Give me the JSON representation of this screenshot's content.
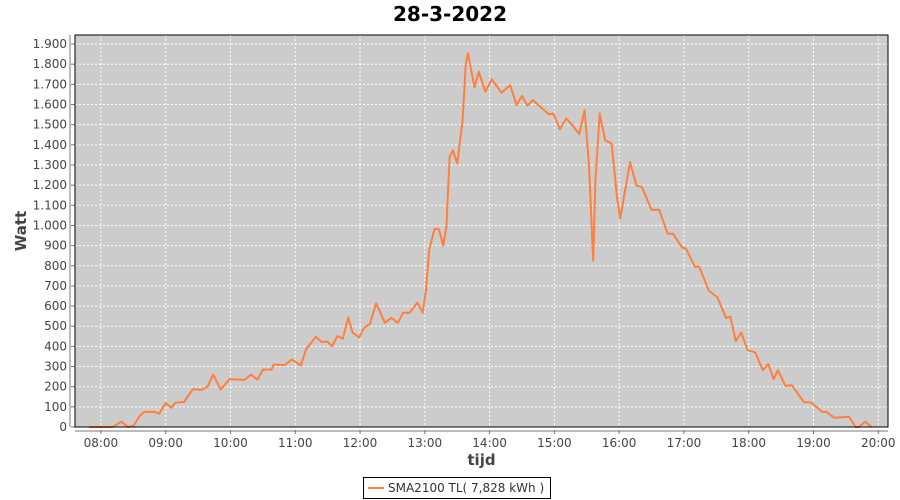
{
  "chart_data": {
    "type": "line",
    "title": "28-3-2022",
    "xlabel": "tijd",
    "ylabel": "Watt",
    "xlim": [
      "07:36",
      "20:09"
    ],
    "ylim": [
      0,
      1945
    ],
    "x_ticks": [
      "08:00",
      "09:00",
      "10:00",
      "11:00",
      "12:00",
      "13:00",
      "14:00",
      "15:00",
      "16:00",
      "17:00",
      "18:00",
      "19:00",
      "20:00"
    ],
    "y_ticks": [
      0,
      100,
      200,
      300,
      400,
      500,
      600,
      700,
      800,
      900,
      1000,
      1100,
      1200,
      1300,
      1400,
      1500,
      1600,
      1700,
      1800,
      1900
    ],
    "y_tick_labels": [
      "0",
      "100",
      "200",
      "300",
      "400",
      "500",
      "600",
      "700",
      "800",
      "900",
      "1.000",
      "1.100",
      "1.200",
      "1.300",
      "1.400",
      "1.500",
      "1.600",
      "1.700",
      "1.800",
      "1.900"
    ],
    "grid": true,
    "legend_position": "bottom",
    "background_color": "#cccccc",
    "series": [
      {
        "name": "SMA2100 TL( 7,828 kWh )",
        "color": "#ff7f3f",
        "points": [
          [
            "07:49",
            0
          ],
          [
            "08:11",
            0
          ],
          [
            "08:19",
            27
          ],
          [
            "08:25",
            0
          ],
          [
            "08:30",
            5
          ],
          [
            "08:36",
            55
          ],
          [
            "08:40",
            75
          ],
          [
            "08:50",
            75
          ],
          [
            "08:54",
            66
          ],
          [
            "09:00",
            118
          ],
          [
            "09:05",
            96
          ],
          [
            "09:09",
            121
          ],
          [
            "09:17",
            124
          ],
          [
            "09:25",
            187
          ],
          [
            "09:33",
            184
          ],
          [
            "09:39",
            202
          ],
          [
            "09:44",
            260
          ],
          [
            "09:51",
            186
          ],
          [
            "09:59",
            237
          ],
          [
            "10:13",
            234
          ],
          [
            "10:19",
            260
          ],
          [
            "10:25",
            235
          ],
          [
            "10:30",
            285
          ],
          [
            "10:38",
            285
          ],
          [
            "10:40",
            310
          ],
          [
            "10:50",
            307
          ],
          [
            "10:57",
            335
          ],
          [
            "11:05",
            305
          ],
          [
            "11:10",
            386
          ],
          [
            "11:19",
            448
          ],
          [
            "11:24",
            423
          ],
          [
            "11:30",
            423
          ],
          [
            "11:34",
            401
          ],
          [
            "11:39",
            451
          ],
          [
            "11:44",
            438
          ],
          [
            "11:49",
            544
          ],
          [
            "11:53",
            469
          ],
          [
            "11:59",
            444
          ],
          [
            "12:04",
            494
          ],
          [
            "12:09",
            511
          ],
          [
            "12:15",
            614
          ],
          [
            "12:23",
            517
          ],
          [
            "12:29",
            542
          ],
          [
            "12:35",
            517
          ],
          [
            "12:40",
            567
          ],
          [
            "12:46",
            567
          ],
          [
            "12:53",
            617
          ],
          [
            "12:58",
            567
          ],
          [
            "13:01",
            677
          ],
          [
            "13:04",
            876
          ],
          [
            "13:09",
            983
          ],
          [
            "13:13",
            982
          ],
          [
            "13:17",
            900
          ],
          [
            "13:20",
            992
          ],
          [
            "13:23",
            1340
          ],
          [
            "13:26",
            1373
          ],
          [
            "13:30",
            1307
          ],
          [
            "13:35",
            1522
          ],
          [
            "13:38",
            1804
          ],
          [
            "13:40",
            1854
          ],
          [
            "13:42",
            1796
          ],
          [
            "13:46",
            1685
          ],
          [
            "13:50",
            1763
          ],
          [
            "13:56",
            1663
          ],
          [
            "14:02",
            1725
          ],
          [
            "14:11",
            1658
          ],
          [
            "14:19",
            1697
          ],
          [
            "14:25",
            1597
          ],
          [
            "14:30",
            1643
          ],
          [
            "14:35",
            1594
          ],
          [
            "14:40",
            1622
          ],
          [
            "14:55",
            1551
          ],
          [
            "14:59",
            1556
          ],
          [
            "15:05",
            1478
          ],
          [
            "15:11",
            1531
          ],
          [
            "15:18",
            1489
          ],
          [
            "15:23",
            1453
          ],
          [
            "15:28",
            1572
          ],
          [
            "15:32",
            1307
          ],
          [
            "15:36",
            826
          ],
          [
            "15:38",
            1224
          ],
          [
            "15:42",
            1556
          ],
          [
            "15:47",
            1423
          ],
          [
            "15:53",
            1406
          ],
          [
            "15:58",
            1141
          ],
          [
            "16:01",
            1033
          ],
          [
            "16:10",
            1315
          ],
          [
            "16:16",
            1199
          ],
          [
            "16:21",
            1191
          ],
          [
            "16:30",
            1078
          ],
          [
            "16:37",
            1078
          ],
          [
            "16:45",
            959
          ],
          [
            "16:50",
            959
          ],
          [
            "16:58",
            892
          ],
          [
            "17:02",
            884
          ],
          [
            "17:10",
            796
          ],
          [
            "17:14",
            796
          ],
          [
            "17:23",
            677
          ],
          [
            "17:31",
            643
          ],
          [
            "17:39",
            541
          ],
          [
            "17:43",
            547
          ],
          [
            "17:48",
            425
          ],
          [
            "17:53",
            469
          ],
          [
            "17:59",
            381
          ],
          [
            "18:06",
            370
          ],
          [
            "18:13",
            282
          ],
          [
            "18:18",
            312
          ],
          [
            "18:23",
            237
          ],
          [
            "18:27",
            282
          ],
          [
            "18:34",
            204
          ],
          [
            "18:40",
            207
          ],
          [
            "18:51",
            124
          ],
          [
            "18:58",
            121
          ],
          [
            "19:08",
            75
          ],
          [
            "19:12",
            75
          ],
          [
            "19:19",
            46
          ],
          [
            "19:33",
            51
          ],
          [
            "19:39",
            0
          ],
          [
            "19:42",
            0
          ],
          [
            "19:48",
            27
          ],
          [
            "19:54",
            0
          ]
        ]
      }
    ]
  }
}
